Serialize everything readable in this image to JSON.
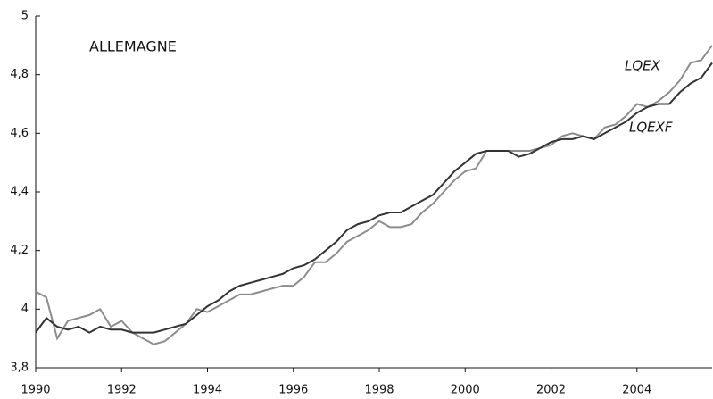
{
  "chart_data": {
    "type": "line",
    "annotation": "ALLEMAGNE",
    "x": [
      1990,
      1990.25,
      1990.5,
      1990.75,
      1991,
      1991.25,
      1991.5,
      1991.75,
      1992,
      1992.25,
      1992.5,
      1992.75,
      1993,
      1993.25,
      1993.5,
      1993.75,
      1994,
      1994.25,
      1994.5,
      1994.75,
      1995,
      1995.25,
      1995.5,
      1995.75,
      1996,
      1996.25,
      1996.5,
      1996.75,
      1997,
      1997.25,
      1997.5,
      1997.75,
      1998,
      1998.25,
      1998.5,
      1998.75,
      1999,
      1999.25,
      1999.5,
      1999.75,
      2000,
      2000.25,
      2000.5,
      2000.75,
      2001,
      2001.25,
      2001.5,
      2001.75,
      2002,
      2002.25,
      2002.5,
      2002.75,
      2003,
      2003.25,
      2003.5,
      2003.75,
      2004,
      2004.25,
      2004.5,
      2004.75,
      2005,
      2005.25,
      2005.5,
      2005.75
    ],
    "series": [
      {
        "name": "LQEX",
        "color": "#8c8c8c",
        "values": [
          4.06,
          4.04,
          3.9,
          3.96,
          3.97,
          3.98,
          4.0,
          3.94,
          3.96,
          3.92,
          3.9,
          3.88,
          3.89,
          3.92,
          3.95,
          4.0,
          3.99,
          4.01,
          4.03,
          4.05,
          4.05,
          4.06,
          4.07,
          4.08,
          4.08,
          4.11,
          4.16,
          4.16,
          4.19,
          4.23,
          4.25,
          4.27,
          4.3,
          4.28,
          4.28,
          4.29,
          4.33,
          4.36,
          4.4,
          4.44,
          4.47,
          4.48,
          4.54,
          4.54,
          4.54,
          4.54,
          4.54,
          4.55,
          4.56,
          4.59,
          4.6,
          4.59,
          4.58,
          4.62,
          4.63,
          4.66,
          4.7,
          4.69,
          4.71,
          4.74,
          4.78,
          4.84,
          4.85,
          4.9
        ]
      },
      {
        "name": "LQEXF",
        "color": "#333333",
        "values": [
          3.92,
          3.97,
          3.94,
          3.93,
          3.94,
          3.92,
          3.94,
          3.93,
          3.93,
          3.92,
          3.92,
          3.92,
          3.93,
          3.94,
          3.95,
          3.98,
          4.01,
          4.03,
          4.06,
          4.08,
          4.09,
          4.1,
          4.11,
          4.12,
          4.14,
          4.15,
          4.17,
          4.2,
          4.23,
          4.27,
          4.29,
          4.3,
          4.32,
          4.33,
          4.33,
          4.35,
          4.37,
          4.39,
          4.43,
          4.47,
          4.5,
          4.53,
          4.54,
          4.54,
          4.54,
          4.52,
          4.53,
          4.55,
          4.57,
          4.58,
          4.58,
          4.59,
          4.58,
          4.6,
          4.62,
          4.64,
          4.67,
          4.69,
          4.7,
          4.7,
          4.74,
          4.77,
          4.79,
          4.84
        ]
      }
    ],
    "xlim": [
      1990,
      2005.75
    ],
    "xticks": [
      1990,
      1992,
      1994,
      1996,
      1998,
      2000,
      2002,
      2004
    ],
    "ylim": [
      3.8,
      5
    ],
    "yticks": [
      {
        "value": 3.8,
        "label": "3,8"
      },
      4,
      {
        "value": 4.2,
        "label": "4,2"
      },
      {
        "value": 4.4,
        "label": "4,4"
      },
      {
        "value": 4.6,
        "label": "4,6"
      },
      {
        "value": 4.8,
        "label": "4,8"
      },
      5
    ]
  }
}
